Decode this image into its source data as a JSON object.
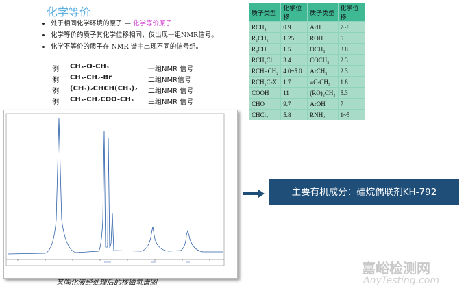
{
  "header": {
    "title": "化学等价"
  },
  "bullets": [
    {
      "text": "处于相同化学环境的原子 — ",
      "highlight": "化学等价原子"
    },
    {
      "text": "化学等价的质子其化学位移相同，仅出现一组NMR信号。"
    },
    {
      "text": "化学不等价的质子在 NMR 谱中出现不同的信号组。"
    }
  ],
  "examples": [
    {
      "label": "例1：",
      "formula": "CH₃-O-CH₃",
      "result": "一组NMR 信号"
    },
    {
      "label": "例2：",
      "formula": "CH₃-CH₂-Br",
      "result": "二组NMR信号"
    },
    {
      "label": "例3：",
      "formula": "(CH₃)₂CHCH(CH₃)₂",
      "result": "二组NMR 信号"
    },
    {
      "label": "例4：",
      "formula": "CH₃-CH₂COO-CH₃",
      "result": "三组NMR 信号"
    }
  ],
  "table": {
    "header": [
      "质子类型",
      "化学位移",
      "质子类型",
      "化学位移"
    ],
    "rows": [
      [
        "RCH₃",
        "0.9",
        "ArH",
        "7~8"
      ],
      [
        "R₂CH₂",
        "1.25",
        "ROH",
        "5"
      ],
      [
        "R₃CH",
        "1.5",
        "OCH₃",
        "3.8"
      ],
      [
        "RCH₂Cl",
        "3.4",
        "COCH₃",
        "2.3"
      ],
      [
        "RCH=CH₂",
        "4.0~5.0",
        "ArCH₃",
        "2.3"
      ],
      [
        "RCH₂C-X",
        "1.7",
        "≡C-CH₃",
        "1.8"
      ],
      [
        "COOH",
        "11",
        "(RO)₂CH₂",
        "5.3"
      ],
      [
        "CHO",
        "9.7",
        "ArOH",
        "7"
      ],
      [
        "CHCl₂",
        "5.8",
        "RNH₂",
        "1~5"
      ]
    ]
  },
  "callout": "主要有机成分：硅烷偶联剂KH-792",
  "caption": "某陶化液经处理后的核磁氢谱图",
  "watermark": {
    "name": "嘉峪检测网",
    "site": "AnyTesting.com"
  }
}
